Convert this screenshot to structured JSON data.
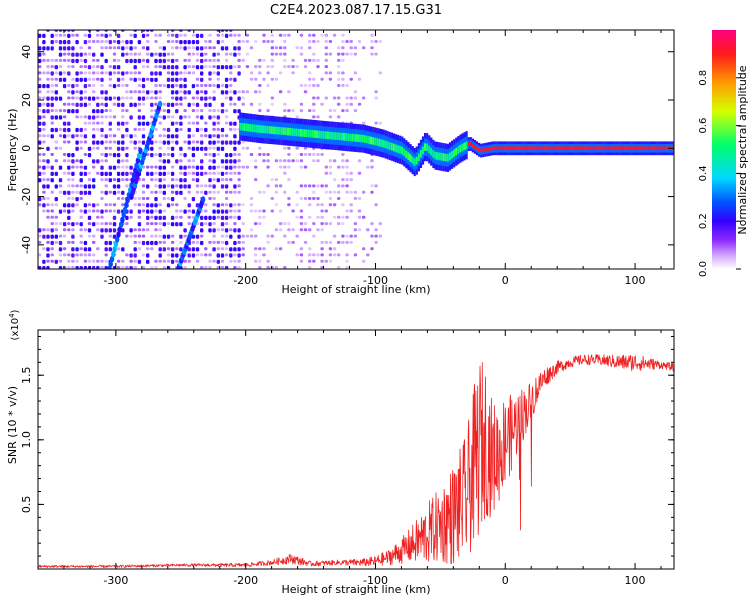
{
  "figure": {
    "title": "C2E4.2023.087.17.15.G31"
  },
  "chart_data": [
    {
      "type": "heatmap",
      "xlabel": "Height of straight line (km)",
      "ylabel": "Frequency (Hz)",
      "xlim": [
        -360,
        130
      ],
      "ylim": [
        -50,
        49
      ],
      "x_ticks": [
        -300,
        -200,
        -100,
        0,
        100
      ],
      "x_tick_labels": [
        "-300",
        "-200",
        "-100",
        "0",
        "100"
      ],
      "y_ticks": [
        -40,
        -20,
        0,
        20,
        40
      ],
      "y_tick_labels": [
        "-40",
        "-20",
        "0",
        "20",
        "40"
      ],
      "colorbar": {
        "label": "Normalized spectral amplitude",
        "range": [
          0,
          1
        ],
        "ticks": [
          0.0,
          0.2,
          0.4,
          0.6,
          0.8
        ],
        "tick_labels": [
          "0.0",
          "0.2",
          "0.4",
          "0.6",
          "0.8"
        ],
        "colormap": [
          "#ffffff",
          "#d9b3ff",
          "#8c2bff",
          "#3300ff",
          "#0055ff",
          "#00d8ff",
          "#00ff6a",
          "#d6ff00",
          "#ff9900",
          "#ff1a1a",
          "#ff0080"
        ]
      },
      "ridge": {
        "x": [
          -205,
          -190,
          -170,
          -150,
          -130,
          -110,
          -95,
          -80,
          -70,
          -62,
          -55,
          -45,
          -35,
          -28,
          -20,
          -10,
          0,
          20,
          60,
          100,
          130
        ],
        "frequency_hz": [
          9,
          8,
          7,
          6,
          5,
          4,
          2,
          -1,
          -6,
          1,
          -3,
          -4,
          0,
          2,
          -1,
          0,
          0,
          0,
          0,
          0,
          0
        ]
      },
      "streaks": [
        {
          "x": [
            -305,
            -280
          ],
          "frequency_hz": [
            -50,
            1
          ]
        },
        {
          "x": [
            -288,
            -265
          ],
          "frequency_hz": [
            -20,
            20
          ]
        },
        {
          "x": [
            -252,
            -232
          ],
          "frequency_hz": [
            -50,
            -20
          ]
        }
      ],
      "grid": false
    },
    {
      "type": "line",
      "xlabel": "Height of straight line (km)",
      "ylabel": "SNR (10 * v/v)",
      "y_multiplier_label": "(x10",
      "y_multiplier_exponent": "4",
      "y_multiplier_close": ")",
      "xlim": [
        -360,
        130
      ],
      "ylim": [
        0,
        1.85
      ],
      "x_ticks": [
        -300,
        -200,
        -100,
        0,
        100
      ],
      "x_tick_labels": [
        "-300",
        "-200",
        "-100",
        "0",
        "100"
      ],
      "y_ticks": [
        0.5,
        1.0,
        1.5
      ],
      "y_tick_labels": [
        "0.5",
        "1.0",
        "1.5"
      ],
      "series": [
        {
          "color": "#ee2222",
          "x": [
            -360,
            -300,
            -250,
            -200,
            -180,
            -165,
            -150,
            -130,
            -110,
            -100,
            -90,
            -80,
            -70,
            -60,
            -50,
            -40,
            -30,
            -25,
            -20,
            -15,
            -10,
            -5,
            0,
            5,
            10,
            15,
            20,
            25,
            30,
            40,
            50,
            60,
            70,
            80,
            90,
            100,
            110,
            120,
            130
          ],
          "values": [
            0.02,
            0.02,
            0.03,
            0.03,
            0.05,
            0.08,
            0.04,
            0.05,
            0.05,
            0.06,
            0.09,
            0.14,
            0.2,
            0.27,
            0.34,
            0.42,
            0.55,
            0.75,
            0.95,
            1.0,
            0.85,
            0.9,
            1.0,
            1.05,
            1.15,
            1.22,
            1.3,
            1.4,
            1.48,
            1.56,
            1.6,
            1.62,
            1.62,
            1.61,
            1.6,
            1.6,
            1.59,
            1.58,
            1.56
          ],
          "noise": [
            0.01,
            0.01,
            0.01,
            0.015,
            0.02,
            0.04,
            0.02,
            0.02,
            0.03,
            0.04,
            0.06,
            0.1,
            0.16,
            0.24,
            0.3,
            0.4,
            0.5,
            0.6,
            0.7,
            0.6,
            0.45,
            0.4,
            0.35,
            0.3,
            0.25,
            0.2,
            0.16,
            0.12,
            0.08,
            0.05,
            0.04,
            0.04,
            0.04,
            0.05,
            0.06,
            0.07,
            0.05,
            0.03,
            0.03
          ]
        }
      ],
      "grid": false
    }
  ]
}
